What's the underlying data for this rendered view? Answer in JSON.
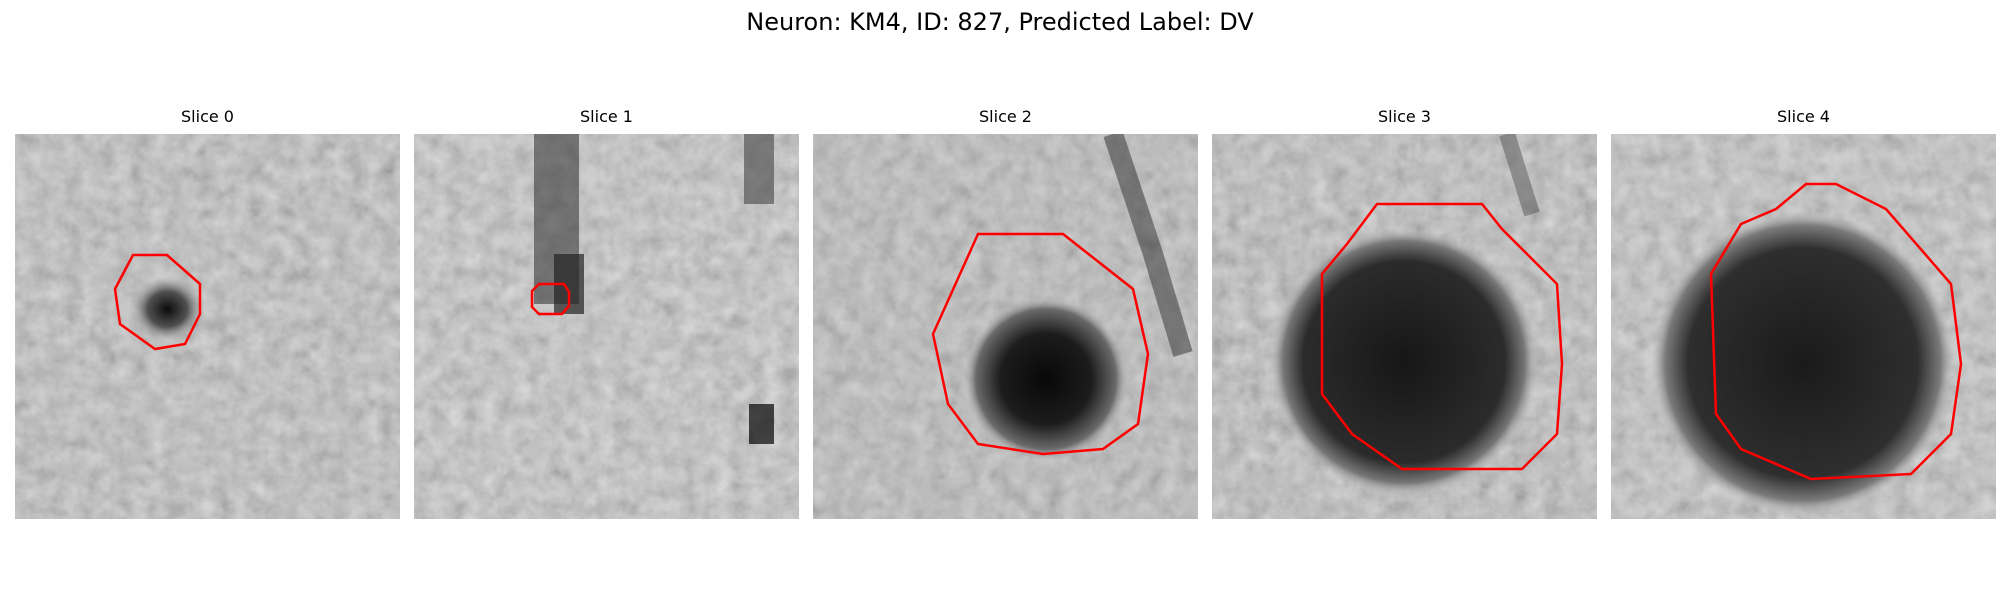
{
  "figure": {
    "title": "Neuron: KM4, ID: 827, Predicted Label: DV"
  },
  "panels": [
    {
      "title": "Slice 0"
    },
    {
      "title": "Slice 1"
    },
    {
      "title": "Slice 2"
    },
    {
      "title": "Slice 3"
    },
    {
      "title": "Slice 4"
    }
  ],
  "colors": {
    "contour": "#ff0000",
    "colormap": "grayscale"
  }
}
